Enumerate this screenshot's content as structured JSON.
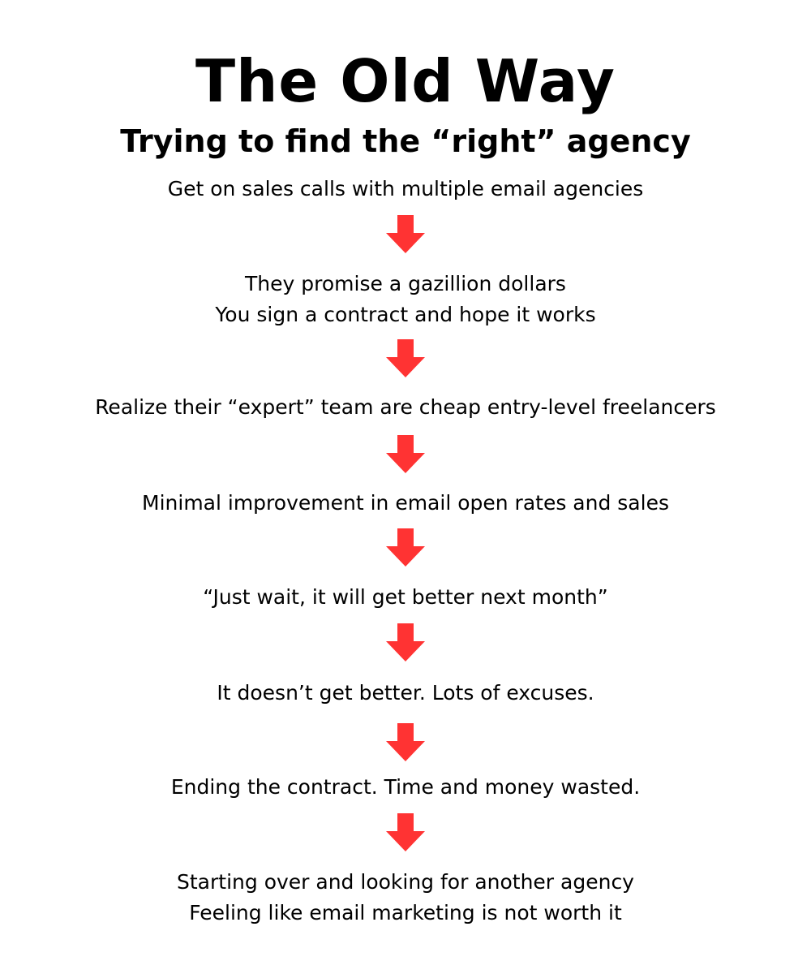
{
  "title": "The Old Way",
  "subtitle": "Trying to find the “right” agency",
  "arrow_color": "#ff3333",
  "steps": [
    {
      "lines": [
        "Get on sales calls with multiple email agencies"
      ]
    },
    {
      "lines": [
        "They promise a gazillion dollars",
        "You sign a contract and hope it works"
      ]
    },
    {
      "lines": [
        "Realize their “expert” team are cheap entry-level freelancers"
      ]
    },
    {
      "lines": [
        "Minimal improvement in email open rates and sales"
      ]
    },
    {
      "lines": [
        "“Just wait, it will get better next month”"
      ]
    },
    {
      "lines": [
        "It doesn’t get better. Lots of excuses."
      ]
    },
    {
      "lines": [
        "Ending the contract. Time and money wasted."
      ]
    },
    {
      "lines": [
        "Starting over and looking for another agency",
        "Feeling like email marketing is not worth it"
      ]
    }
  ]
}
